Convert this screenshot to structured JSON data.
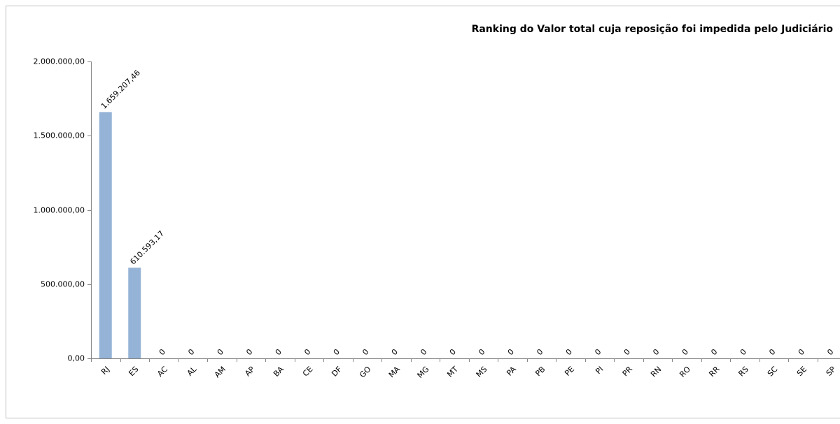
{
  "chart_data": {
    "type": "bar",
    "title": "Ranking  do Valor total cuja reposição foi impedida pelo Judiciário",
    "categories": [
      "RJ",
      "ES",
      "AC",
      "AL",
      "AM",
      "AP",
      "BA",
      "CE",
      "DF",
      "GO",
      "MA",
      "MG",
      "MT",
      "MS",
      "PA",
      "PB",
      "PE",
      "PI",
      "PR",
      "RN",
      "RO",
      "RR",
      "RS",
      "SC",
      "SE",
      "SP"
    ],
    "values": [
      1659207.46,
      610593.17,
      0,
      0,
      0,
      0,
      0,
      0,
      0,
      0,
      0,
      0,
      0,
      0,
      0,
      0,
      0,
      0,
      0,
      0,
      0,
      0,
      0,
      0,
      0,
      0
    ],
    "value_labels": [
      "1.659.207,46",
      "610.593,17",
      "0",
      "0",
      "0",
      "0",
      "0",
      "0",
      "0",
      "0",
      "0",
      "0",
      "0",
      "0",
      "0",
      "0",
      "0",
      "0",
      "0",
      "0",
      "0",
      "0",
      "0",
      "0",
      "0",
      "0"
    ],
    "color": "#95b3d7",
    "ylim": [
      0,
      2000000
    ],
    "yticks": [
      {
        "value": 0,
        "label": "0,00"
      },
      {
        "value": 500000,
        "label": "500.000,00"
      },
      {
        "value": 1000000,
        "label": "1.000.000,00"
      },
      {
        "value": 1500000,
        "label": "1.500.000,00"
      },
      {
        "value": 2000000,
        "label": "2.000.000,00"
      }
    ],
    "grid": false
  }
}
